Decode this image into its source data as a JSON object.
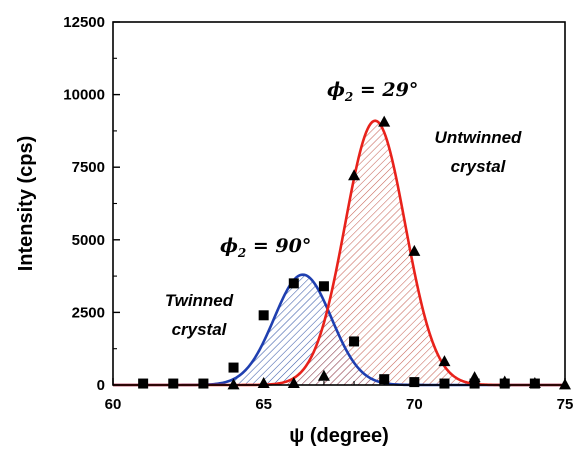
{
  "chart_data": {
    "type": "scatter",
    "xlabel": "ψ (degree)",
    "ylabel": "Intensity (cps)",
    "xlim": [
      60,
      75
    ],
    "ylim": [
      0,
      12500
    ],
    "xticks": [
      "60",
      "65",
      "70",
      "75"
    ],
    "yticks": [
      "0",
      "2500",
      "5000",
      "7500",
      "10000",
      "12500"
    ],
    "grid": false,
    "series": [
      {
        "marker": "square",
        "color": "#000000",
        "fit_color": "#1f3fb0",
        "fill_color": "#3a5aa8",
        "fit": {
          "type": "gaussian",
          "amplitude": 3800,
          "center": 66.3,
          "sigma": 0.95
        },
        "points": [
          {
            "x": 61.0,
            "y": 50
          },
          {
            "x": 62.0,
            "y": 50
          },
          {
            "x": 63.0,
            "y": 50
          },
          {
            "x": 64.0,
            "y": 600
          },
          {
            "x": 65.0,
            "y": 2400
          },
          {
            "x": 66.0,
            "y": 3500
          },
          {
            "x": 67.0,
            "y": 3400
          },
          {
            "x": 68.0,
            "y": 1500
          },
          {
            "x": 69.0,
            "y": 200
          },
          {
            "x": 70.0,
            "y": 100
          },
          {
            "x": 71.0,
            "y": 50
          },
          {
            "x": 72.0,
            "y": 50
          },
          {
            "x": 73.0,
            "y": 50
          },
          {
            "x": 74.0,
            "y": 50
          }
        ]
      },
      {
        "marker": "triangle",
        "color": "#000000",
        "fit_color": "#e8221b",
        "fill_color": "#c8665a",
        "fit": {
          "type": "gaussian",
          "amplitude": 9100,
          "center": 68.7,
          "sigma": 1.0
        },
        "points": [
          {
            "x": 64.0,
            "y": 0
          },
          {
            "x": 65.0,
            "y": 50
          },
          {
            "x": 66.0,
            "y": 50
          },
          {
            "x": 67.0,
            "y": 300
          },
          {
            "x": 68.0,
            "y": 7200
          },
          {
            "x": 69.0,
            "y": 9050
          },
          {
            "x": 70.0,
            "y": 4600
          },
          {
            "x": 71.0,
            "y": 800
          },
          {
            "x": 72.0,
            "y": 250
          },
          {
            "x": 73.0,
            "y": 100
          },
          {
            "x": 74.0,
            "y": 50
          },
          {
            "x": 75.0,
            "y": 0
          }
        ]
      }
    ],
    "annotations": {
      "phi_red": {
        "symbol": "ϕ",
        "sub": "2",
        "value": " = 29°"
      },
      "phi_blue": {
        "symbol": "ϕ",
        "sub": "2",
        "value": " = 90°"
      },
      "untwinned": [
        "Untwinned",
        "crystal"
      ],
      "twinned": [
        "Twinned",
        "crystal"
      ]
    }
  }
}
